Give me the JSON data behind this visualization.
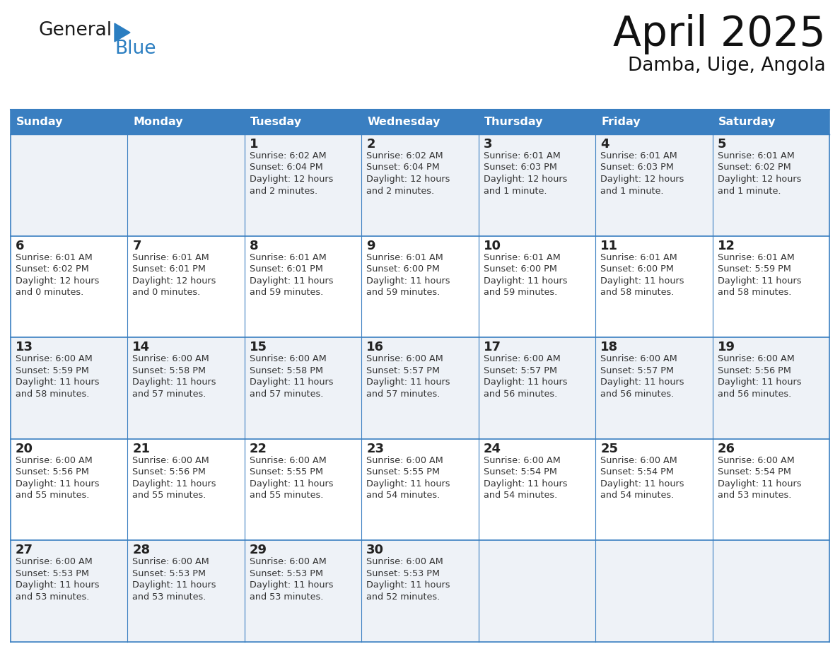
{
  "title": "April 2025",
  "subtitle": "Damba, Uige, Angola",
  "days_header": [
    "Sunday",
    "Monday",
    "Tuesday",
    "Wednesday",
    "Thursday",
    "Friday",
    "Saturday"
  ],
  "header_bg": "#3a7fc1",
  "header_text_color": "#ffffff",
  "row_bg_light": "#eef2f7",
  "row_bg_white": "#ffffff",
  "cell_border_color": "#3a7fc1",
  "cell_divider_color": "#3a7fc1",
  "day_number_color": "#222222",
  "text_color": "#333333",
  "logo_general_color": "#1a1a1a",
  "logo_blue_color": "#2b7ec1",
  "weeks": [
    {
      "days": [
        {
          "date": "",
          "sunrise": "",
          "sunset": "",
          "daylight": ""
        },
        {
          "date": "",
          "sunrise": "",
          "sunset": "",
          "daylight": ""
        },
        {
          "date": "1",
          "sunrise": "6:02 AM",
          "sunset": "6:04 PM",
          "daylight": "12 hours\nand 2 minutes."
        },
        {
          "date": "2",
          "sunrise": "6:02 AM",
          "sunset": "6:04 PM",
          "daylight": "12 hours\nand 2 minutes."
        },
        {
          "date": "3",
          "sunrise": "6:01 AM",
          "sunset": "6:03 PM",
          "daylight": "12 hours\nand 1 minute."
        },
        {
          "date": "4",
          "sunrise": "6:01 AM",
          "sunset": "6:03 PM",
          "daylight": "12 hours\nand 1 minute."
        },
        {
          "date": "5",
          "sunrise": "6:01 AM",
          "sunset": "6:02 PM",
          "daylight": "12 hours\nand 1 minute."
        }
      ]
    },
    {
      "days": [
        {
          "date": "6",
          "sunrise": "6:01 AM",
          "sunset": "6:02 PM",
          "daylight": "12 hours\nand 0 minutes."
        },
        {
          "date": "7",
          "sunrise": "6:01 AM",
          "sunset": "6:01 PM",
          "daylight": "12 hours\nand 0 minutes."
        },
        {
          "date": "8",
          "sunrise": "6:01 AM",
          "sunset": "6:01 PM",
          "daylight": "11 hours\nand 59 minutes."
        },
        {
          "date": "9",
          "sunrise": "6:01 AM",
          "sunset": "6:00 PM",
          "daylight": "11 hours\nand 59 minutes."
        },
        {
          "date": "10",
          "sunrise": "6:01 AM",
          "sunset": "6:00 PM",
          "daylight": "11 hours\nand 59 minutes."
        },
        {
          "date": "11",
          "sunrise": "6:01 AM",
          "sunset": "6:00 PM",
          "daylight": "11 hours\nand 58 minutes."
        },
        {
          "date": "12",
          "sunrise": "6:01 AM",
          "sunset": "5:59 PM",
          "daylight": "11 hours\nand 58 minutes."
        }
      ]
    },
    {
      "days": [
        {
          "date": "13",
          "sunrise": "6:00 AM",
          "sunset": "5:59 PM",
          "daylight": "11 hours\nand 58 minutes."
        },
        {
          "date": "14",
          "sunrise": "6:00 AM",
          "sunset": "5:58 PM",
          "daylight": "11 hours\nand 57 minutes."
        },
        {
          "date": "15",
          "sunrise": "6:00 AM",
          "sunset": "5:58 PM",
          "daylight": "11 hours\nand 57 minutes."
        },
        {
          "date": "16",
          "sunrise": "6:00 AM",
          "sunset": "5:57 PM",
          "daylight": "11 hours\nand 57 minutes."
        },
        {
          "date": "17",
          "sunrise": "6:00 AM",
          "sunset": "5:57 PM",
          "daylight": "11 hours\nand 56 minutes."
        },
        {
          "date": "18",
          "sunrise": "6:00 AM",
          "sunset": "5:57 PM",
          "daylight": "11 hours\nand 56 minutes."
        },
        {
          "date": "19",
          "sunrise": "6:00 AM",
          "sunset": "5:56 PM",
          "daylight": "11 hours\nand 56 minutes."
        }
      ]
    },
    {
      "days": [
        {
          "date": "20",
          "sunrise": "6:00 AM",
          "sunset": "5:56 PM",
          "daylight": "11 hours\nand 55 minutes."
        },
        {
          "date": "21",
          "sunrise": "6:00 AM",
          "sunset": "5:56 PM",
          "daylight": "11 hours\nand 55 minutes."
        },
        {
          "date": "22",
          "sunrise": "6:00 AM",
          "sunset": "5:55 PM",
          "daylight": "11 hours\nand 55 minutes."
        },
        {
          "date": "23",
          "sunrise": "6:00 AM",
          "sunset": "5:55 PM",
          "daylight": "11 hours\nand 54 minutes."
        },
        {
          "date": "24",
          "sunrise": "6:00 AM",
          "sunset": "5:54 PM",
          "daylight": "11 hours\nand 54 minutes."
        },
        {
          "date": "25",
          "sunrise": "6:00 AM",
          "sunset": "5:54 PM",
          "daylight": "11 hours\nand 54 minutes."
        },
        {
          "date": "26",
          "sunrise": "6:00 AM",
          "sunset": "5:54 PM",
          "daylight": "11 hours\nand 53 minutes."
        }
      ]
    },
    {
      "days": [
        {
          "date": "27",
          "sunrise": "6:00 AM",
          "sunset": "5:53 PM",
          "daylight": "11 hours\nand 53 minutes."
        },
        {
          "date": "28",
          "sunrise": "6:00 AM",
          "sunset": "5:53 PM",
          "daylight": "11 hours\nand 53 minutes."
        },
        {
          "date": "29",
          "sunrise": "6:00 AM",
          "sunset": "5:53 PM",
          "daylight": "11 hours\nand 53 minutes."
        },
        {
          "date": "30",
          "sunrise": "6:00 AM",
          "sunset": "5:53 PM",
          "daylight": "11 hours\nand 52 minutes."
        },
        {
          "date": "",
          "sunrise": "",
          "sunset": "",
          "daylight": ""
        },
        {
          "date": "",
          "sunrise": "",
          "sunset": "",
          "daylight": ""
        },
        {
          "date": "",
          "sunrise": "",
          "sunset": "",
          "daylight": ""
        }
      ]
    }
  ],
  "figsize": [
    11.88,
    9.18
  ],
  "dpi": 100
}
